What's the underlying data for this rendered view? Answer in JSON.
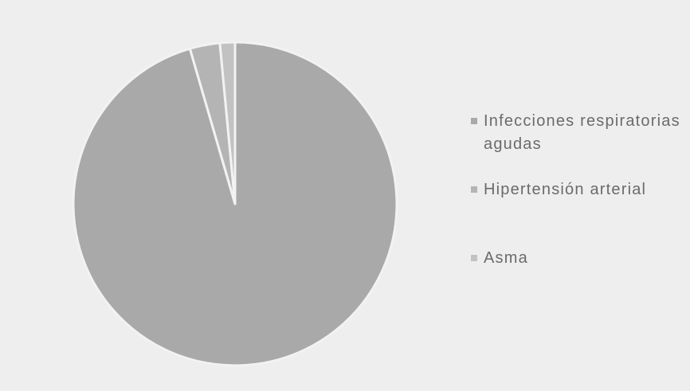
{
  "chart_data": {
    "type": "pie",
    "title": "",
    "slices": [
      {
        "label": "Infecciones respiratorias agudas",
        "value": 95.5,
        "color": "#a9a9a9"
      },
      {
        "label": "Hipertensión arterial",
        "value": 3.0,
        "color": "#b4b4b4"
      },
      {
        "label": "Asma",
        "value": 1.5,
        "color": "#c2c2c2"
      }
    ],
    "legend_position": "right",
    "slice_border_color": "#f2f2f2"
  },
  "legend": {
    "items": [
      {
        "label": "Infecciones respiratorias agudas"
      },
      {
        "label": "Hipertensión arterial"
      },
      {
        "label": "Asma"
      }
    ]
  }
}
